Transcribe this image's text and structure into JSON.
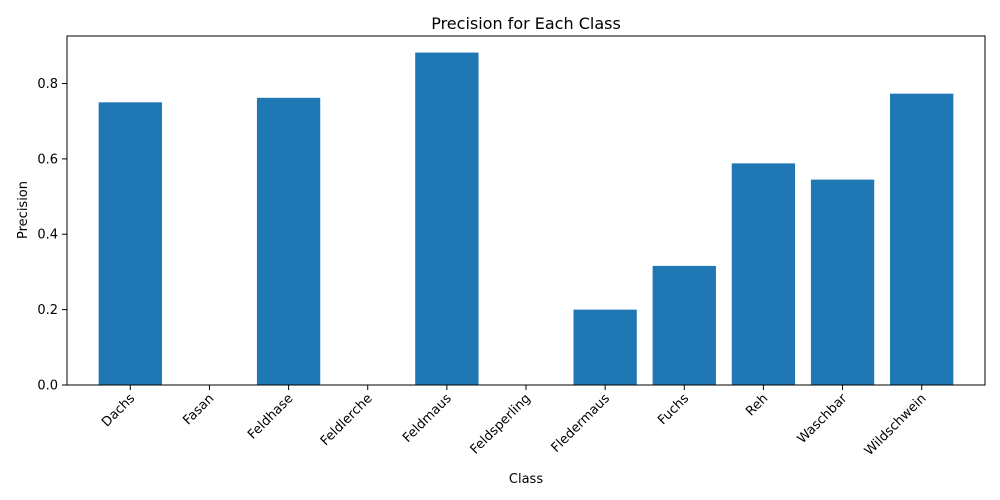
{
  "chart_data": {
    "type": "bar",
    "title": "Precision for Each Class",
    "xlabel": "Class",
    "ylabel": "Precision",
    "categories": [
      "Dachs",
      "Fasan",
      "Feldhase",
      "Feldlerche",
      "Feldmaus",
      "Feldsperling",
      "Fledermaus",
      "Fuchs",
      "Reh",
      "Waschbar",
      "Wildschwein"
    ],
    "values": [
      0.75,
      0.0,
      0.762,
      0.0,
      0.882,
      0.0,
      0.2,
      0.316,
      0.588,
      0.545,
      0.773
    ],
    "ylim": [
      0,
      0.926
    ],
    "yticks": [
      0.0,
      0.2,
      0.4,
      0.6,
      0.8
    ],
    "ytick_labels": [
      "0.0",
      "0.2",
      "0.4",
      "0.6",
      "0.8"
    ],
    "bar_color": "#1f77b4",
    "grid": false,
    "legend": "none"
  }
}
